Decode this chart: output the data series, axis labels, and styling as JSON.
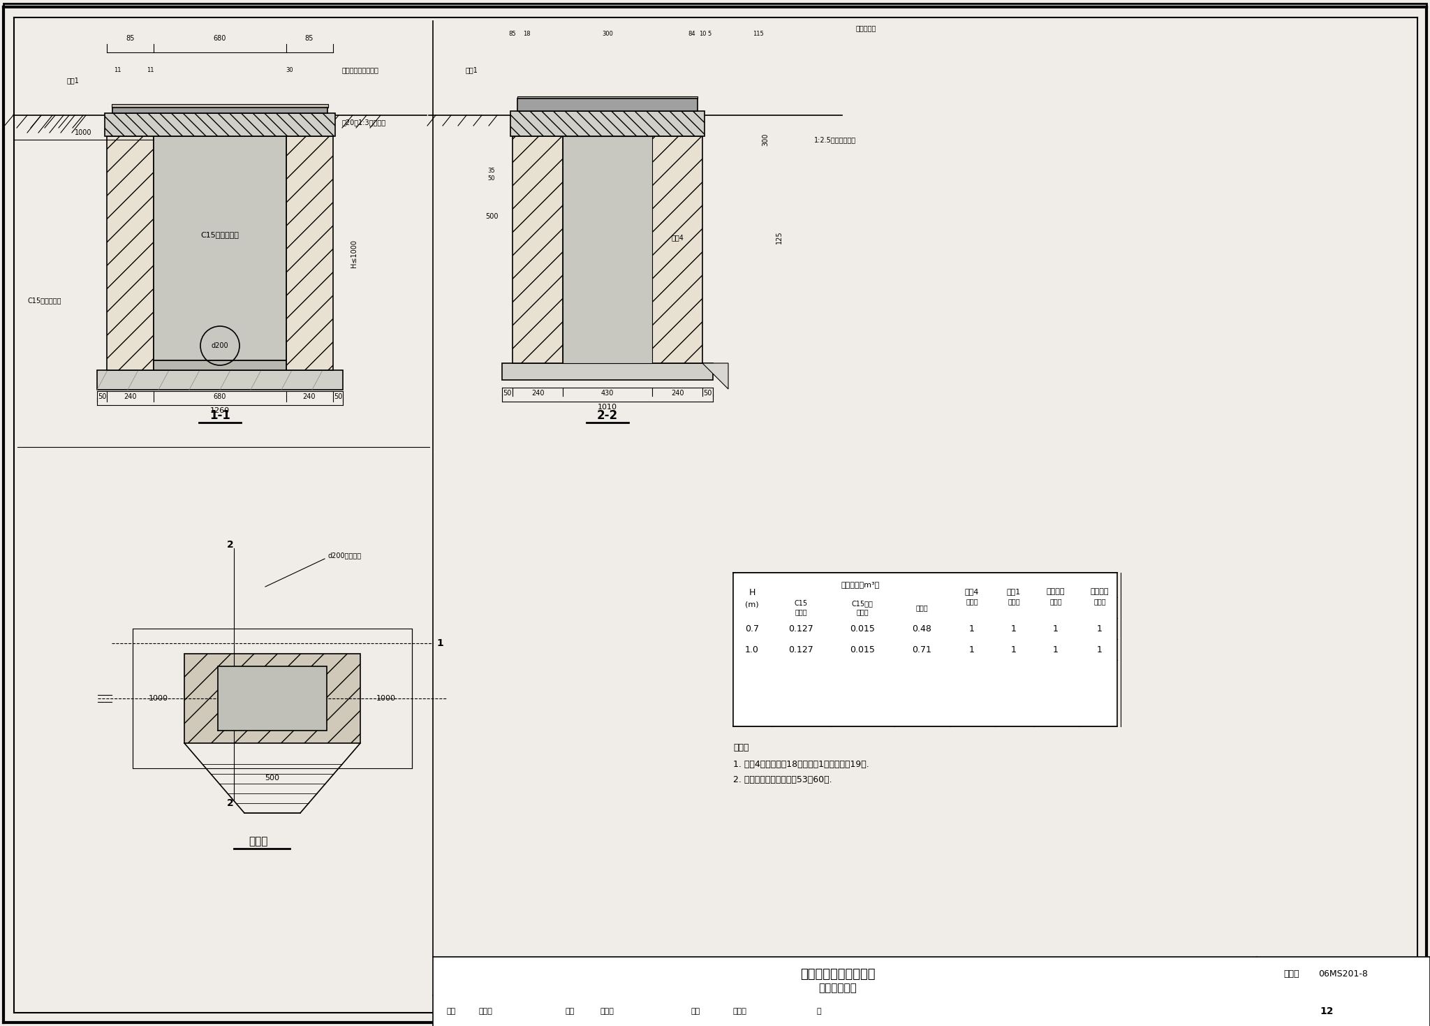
{
  "title": "砖砌联合式单算雨水口",
  "subtitle": "（铸铁井圈）",
  "drawing_number": "06MS201-8",
  "page": "12",
  "background_color": "#f0ede8",
  "line_color": "#000000",
  "hatch_color": "#000000",
  "section_1_1_label": "1-1",
  "section_2_2_label": "2-2",
  "plan_label": "平面图",
  "table_headers": [
    "H",
    "工程数量（m³）",
    "过梁4",
    "盖板1",
    "铸铁算子",
    "铸铁井圈"
  ],
  "table_sub_headers": [
    "(m)",
    "C15混凝土",
    "C15细石混凝土",
    "砖砌体",
    "（根）",
    "（块）",
    "（个）",
    "（个）"
  ],
  "table_rows": [
    [
      "0.7",
      "0.127",
      "0.015",
      "0.48",
      "1",
      "1",
      "1",
      "1"
    ],
    [
      "1.0",
      "0.127",
      "0.015",
      "0.71",
      "1",
      "1",
      "1",
      "1"
    ]
  ],
  "notes_title": "说明：",
  "notes": [
    "1. 过梁4见本图集第18页；盖板1见本图集第19页.",
    "2. 井圈及算子见本图集第53～60页."
  ],
  "footer_items": [
    "审核",
    "王懔山",
    "校对",
    "盛奕节",
    "设计",
    "温丽晖",
    "页"
  ],
  "dim_color": "#000000"
}
